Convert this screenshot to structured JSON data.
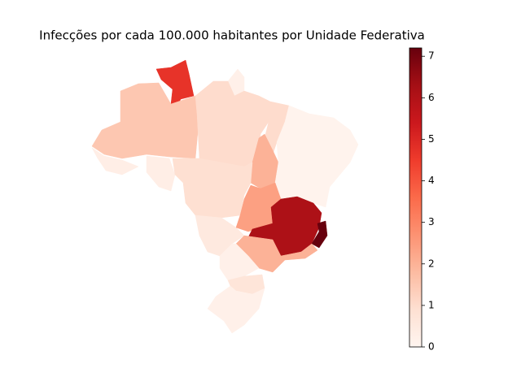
{
  "chart_data": {
    "type": "choropleth",
    "title": "Infecções por cada 100.000 habitantes por Unidade Federativa",
    "colormap": "Reds",
    "values": [
      4.7,
      0.2,
      1.5,
      0.3,
      0.3,
      1.0,
      1.0,
      2.0,
      0.1,
      0.9,
      0.5,
      2.4,
      6.1,
      7.2,
      2.0,
      2.0,
      0.2,
      0.7,
      0.2
    ],
    "clim": [
      0,
      7.2
    ],
    "cticks": [
      0,
      1,
      2,
      3,
      4,
      5,
      6,
      7
    ]
  }
}
